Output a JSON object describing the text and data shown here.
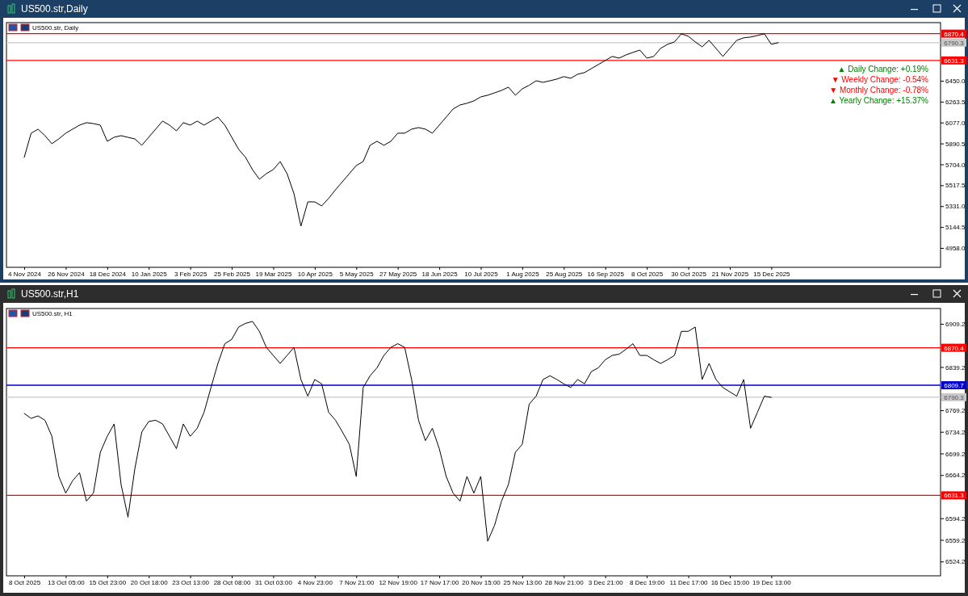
{
  "chart_data": [
    {
      "type": "line",
      "title": "US500.str,Daily",
      "subtitle": "US500.str, Daily",
      "categories": [
        "4 Nov 2024",
        null,
        null,
        null,
        null,
        null,
        "26 Nov 2024",
        null,
        null,
        null,
        null,
        null,
        "18 Dec 2024",
        null,
        null,
        null,
        null,
        null,
        "10 Jan 2025",
        null,
        null,
        null,
        null,
        null,
        "3 Feb 2025",
        null,
        null,
        null,
        null,
        null,
        "25 Feb 2025",
        null,
        null,
        null,
        null,
        null,
        "19 Mar 2025",
        null,
        null,
        null,
        null,
        null,
        "10 Apr 2025",
        null,
        null,
        null,
        null,
        null,
        "5 May 2025",
        null,
        null,
        null,
        null,
        null,
        "27 May 2025",
        null,
        null,
        null,
        null,
        null,
        "18 Jun 2025",
        null,
        null,
        null,
        null,
        null,
        "10 Jul 2025",
        null,
        null,
        null,
        null,
        null,
        "1 Aug 2025",
        null,
        null,
        null,
        null,
        null,
        "25 Aug 2025",
        null,
        null,
        null,
        null,
        null,
        "16 Sep 2025",
        null,
        null,
        null,
        null,
        null,
        "8 Oct 2025",
        null,
        null,
        null,
        null,
        null,
        "30 Oct 2025",
        null,
        null,
        null,
        null,
        null,
        "21 Nov 2025",
        null,
        null,
        null,
        null,
        null,
        "15 Dec 2025",
        null,
        null,
        null,
        null,
        null,
        null,
        null,
        null,
        null,
        null,
        null,
        null,
        null,
        null,
        null,
        null,
        null,
        null,
        null,
        null,
        null,
        null,
        null,
        null
      ],
      "series": [
        {
          "color": "#000000",
          "values": [
            5766,
            5982,
            6018,
            5960,
            5888,
            5931,
            5982,
            6018,
            6054,
            6076,
            6068,
            6054,
            5910,
            5946,
            5960,
            5945,
            5931,
            5874,
            5946,
            6018,
            6090,
            6054,
            6003,
            6076,
            6054,
            6090,
            6054,
            6090,
            6126,
            6054,
            5946,
            5838,
            5766,
            5657,
            5571,
            5621,
            5657,
            5729,
            5621,
            5441,
            5153,
            5369,
            5369,
            5333,
            5400,
            5477,
            5549,
            5621,
            5693,
            5729,
            5874,
            5910,
            5874,
            5910,
            5982,
            5982,
            6018,
            6032,
            6018,
            5982,
            6054,
            6126,
            6198,
            6234,
            6249,
            6270,
            6306,
            6321,
            6342,
            6364,
            6393,
            6321,
            6378,
            6410,
            6450,
            6436,
            6450,
            6465,
            6487,
            6472,
            6508,
            6523,
            6559,
            6595,
            6631,
            6667,
            6652,
            6681,
            6703,
            6724,
            6652,
            6667,
            6739,
            6775,
            6797,
            6869,
            6847,
            6797,
            6753,
            6811,
            6739,
            6667,
            6739,
            6811,
            6833,
            6840,
            6854,
            6869,
            6775,
            6790,
            null,
            null,
            null,
            null,
            null,
            null,
            null,
            null,
            null,
            null,
            null,
            null,
            null,
            null,
            null,
            null,
            null,
            null,
            null,
            null,
            null,
            null,
            null
          ]
        }
      ],
      "ylim": [
        4785,
        6969
      ],
      "yticks": [
        {
          "value": 4958,
          "label": "4958.0"
        },
        {
          "value": 5144.5,
          "label": "5144.5"
        },
        {
          "value": 5331,
          "label": "5331.0"
        },
        {
          "value": 5517.5,
          "label": "5517.5"
        },
        {
          "value": 5704,
          "label": "5704.0"
        },
        {
          "value": 5890.5,
          "label": "5890.5"
        },
        {
          "value": 6077,
          "label": "6077.0"
        },
        {
          "value": 6263.5,
          "label": "6263.5"
        },
        {
          "value": 6450,
          "label": "6450.0"
        }
      ],
      "ref_lines": [
        {
          "axis": "y",
          "value": 6870.4,
          "label": "6870.4",
          "color": "#ff0000"
        },
        {
          "axis": "y",
          "value": 6790.3,
          "label": "6790.3",
          "color": "#c8c8c8"
        },
        {
          "axis": "y",
          "value": 6631.3,
          "label": "6631.3",
          "color": "#ff0000"
        }
      ],
      "annotations": [
        "▲ Daily Change: +0.19%",
        "▼ Weekly Change: -0.54%",
        "▼ Monthly Change: -0.78%",
        "▲ Yearly Change: +15.37%"
      ]
    },
    {
      "type": "line",
      "title": "US500.str,H1",
      "subtitle": "US500.str, H1",
      "categories": [
        "8 Oct 2025",
        null,
        null,
        null,
        null,
        null,
        "13 Oct 05:00",
        null,
        null,
        null,
        null,
        null,
        "15 Oct 23:00",
        null,
        null,
        null,
        null,
        null,
        "20 Oct 18:00",
        null,
        null,
        null,
        null,
        null,
        "23 Oct 13:00",
        null,
        null,
        null,
        null,
        null,
        "28 Oct 08:00",
        null,
        null,
        null,
        null,
        null,
        "31 Oct 03:00",
        null,
        null,
        null,
        null,
        null,
        "4 Nov 23:00",
        null,
        null,
        null,
        null,
        null,
        "7 Nov 21:00",
        null,
        null,
        null,
        null,
        null,
        "12 Nov 19:00",
        null,
        null,
        null,
        null,
        null,
        "17 Nov 17:00",
        null,
        null,
        null,
        null,
        null,
        "20 Nov 15:00",
        null,
        null,
        null,
        null,
        null,
        "25 Nov 13:00",
        null,
        null,
        null,
        null,
        null,
        "28 Nov 21:00",
        null,
        null,
        null,
        null,
        null,
        "3 Dec 21:00",
        null,
        null,
        null,
        null,
        null,
        "8 Dec 19:00",
        null,
        null,
        null,
        null,
        null,
        "11 Dec 17:00",
        null,
        null,
        null,
        null,
        null,
        "16 Dec 15:00",
        null,
        null,
        null,
        null,
        null,
        "19 Dec 13:00",
        null,
        null,
        null,
        null,
        null,
        null,
        null,
        null,
        null,
        null,
        null,
        null,
        null,
        null,
        null,
        null,
        null,
        null,
        null,
        null,
        null,
        null,
        null,
        null
      ],
      "series": [
        {
          "color": "#000000",
          "values": [
            6764,
            6756,
            6760,
            6753,
            6727,
            6662,
            6635,
            6655,
            6668,
            6622,
            6635,
            6701,
            6727,
            6747,
            6649,
            6596,
            6675,
            6734,
            6751,
            6753,
            6747,
            6727,
            6707,
            6747,
            6727,
            6740,
            6766,
            6806,
            6845,
            6877,
            6884,
            6904,
            6910,
            6913,
            6897,
            6871,
            6858,
            6845,
            6858,
            6871,
            6819,
            6792,
            6819,
            6812,
            6766,
            6753,
            6734,
            6714,
            6662,
            6806,
            6825,
            6838,
            6858,
            6871,
            6877,
            6871,
            6819,
            6753,
            6720,
            6740,
            6707,
            6662,
            6635,
            6622,
            6662,
            6635,
            6662,
            6557,
            6583,
            6622,
            6649,
            6701,
            6714,
            6779,
            6792,
            6819,
            6825,
            6819,
            6812,
            6806,
            6819,
            6812,
            6832,
            6838,
            6851,
            6858,
            6860,
            6868,
            6877,
            6858,
            6858,
            6851,
            6845,
            6851,
            6858,
            6897,
            6897,
            6904,
            6819,
            6845,
            6819,
            6806,
            6799,
            6792,
            6819,
            6740,
            6766,
            6792,
            6790,
            null,
            null,
            null,
            null,
            null,
            null,
            null,
            null,
            null,
            null,
            null,
            null,
            null,
            null,
            null,
            null,
            null,
            null,
            null,
            null,
            null,
            null,
            null,
            null
          ]
        }
      ],
      "ylim": [
        6501,
        6934
      ],
      "yticks": [
        6524.2,
        6559.2,
        6594.2,
        6664.2,
        6699.2,
        6734.2,
        6769.2,
        6839.2,
        6909.2
      ],
      "ref_lines": [
        {
          "axis": "y",
          "value": 6870.4,
          "label": "6870.4",
          "color": "#ff0000"
        },
        {
          "axis": "y",
          "value": 6809.7,
          "label": "6809.7",
          "color": "#0000cc"
        },
        {
          "axis": "y",
          "value": 6790.3,
          "label": "6790.3",
          "color": "#c8c8c8"
        },
        {
          "axis": "y",
          "value": 6631.3,
          "label": "6631.3",
          "color": "#ff0000"
        }
      ]
    }
  ]
}
